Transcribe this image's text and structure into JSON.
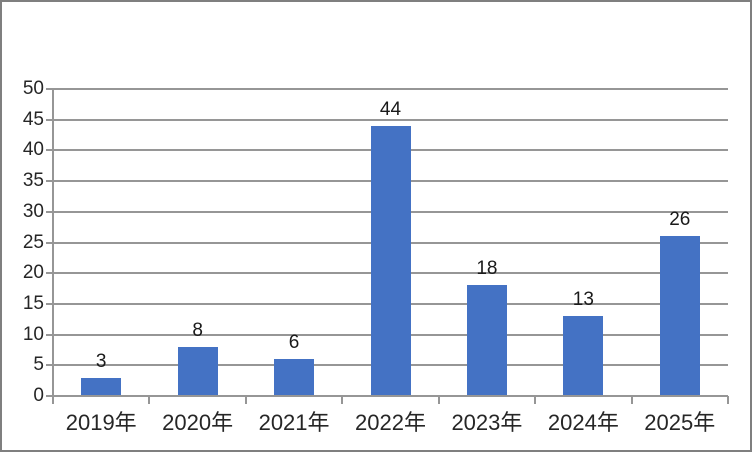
{
  "chart_data": {
    "type": "bar",
    "title": "",
    "xlabel": "",
    "ylabel": "",
    "categories": [
      "2019年",
      "2020年",
      "2021年",
      "2022年",
      "2023年",
      "2024年",
      "2025年"
    ],
    "values": [
      3,
      8,
      6,
      44,
      18,
      13,
      26
    ],
    "data_labels": [
      "3",
      "8",
      "6",
      "44",
      "18",
      "13",
      "26"
    ],
    "ylim": [
      0,
      50
    ],
    "ytick_step": 5,
    "ytick_labels": [
      "0",
      "5",
      "10",
      "15",
      "20",
      "25",
      "30",
      "35",
      "40",
      "45",
      "50"
    ],
    "grid": true,
    "legend": false,
    "colors": {
      "bar": "#4472C4",
      "gridline": "#969696",
      "axis": "#969696",
      "axis_text": "#262626",
      "data_label_text": "#1A1A1A",
      "frame_border": "#7F7F7F",
      "background": "#FFFFFF"
    }
  }
}
